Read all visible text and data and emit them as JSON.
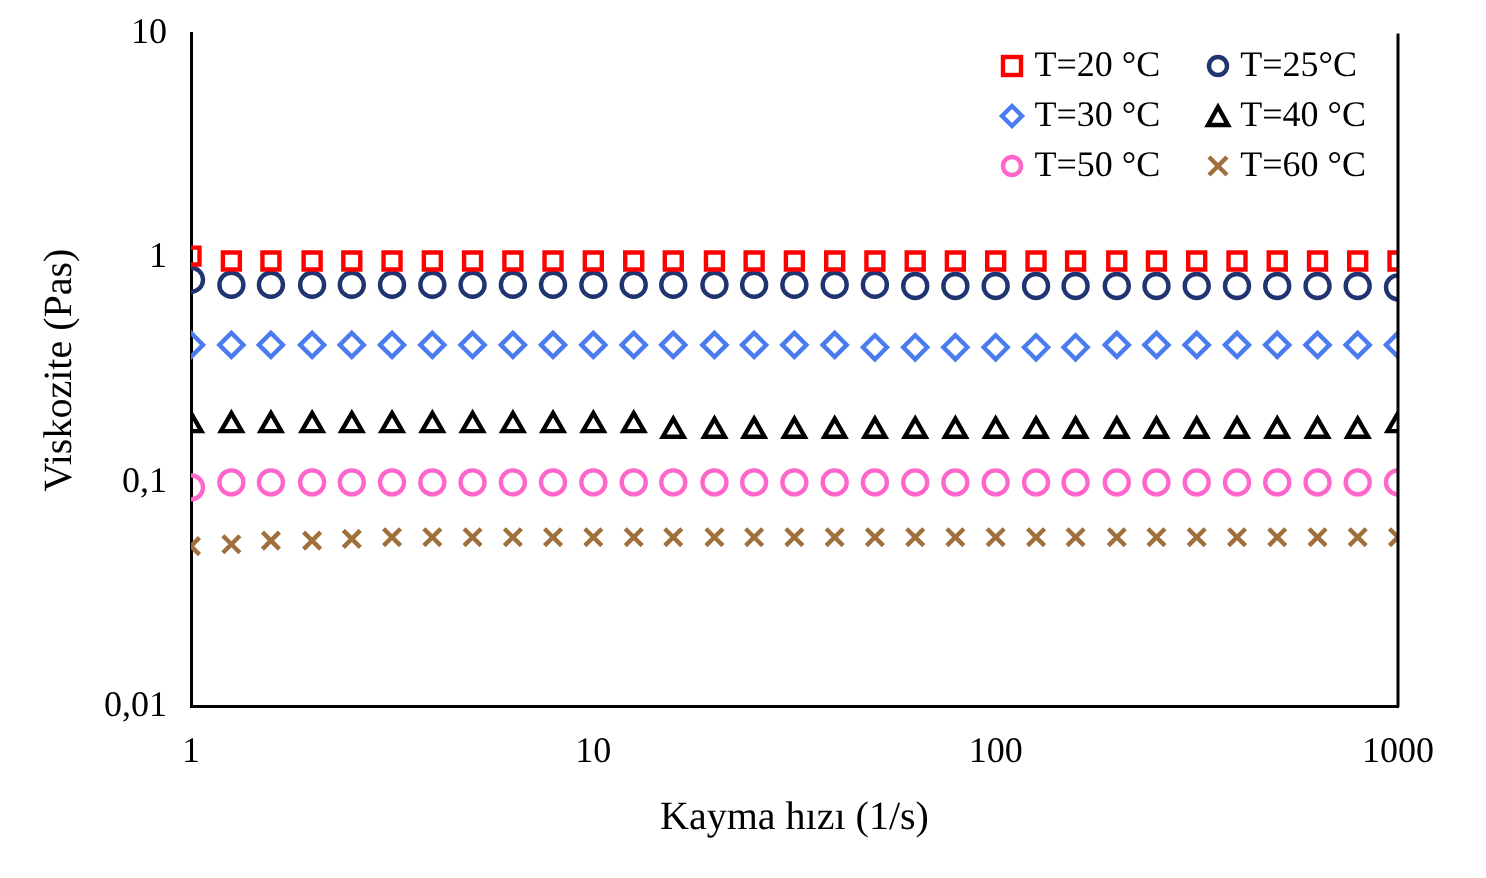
{
  "chart_data": {
    "type": "scatter",
    "xlabel": "Kayma hızı (1/s)",
    "ylabel": "Viskozite (Pas)",
    "log": "xy",
    "x": [
      1,
      1.26,
      1.58,
      2,
      2.51,
      3.16,
      3.98,
      5.01,
      6.31,
      7.94,
      10,
      12.6,
      15.8,
      20,
      25.1,
      31.6,
      39.8,
      50.1,
      63.1,
      79.4,
      100,
      126,
      158,
      200,
      251,
      316,
      398,
      501,
      631,
      794,
      1000
    ],
    "xlim": [
      1,
      1000
    ],
    "xticks": [
      1,
      10,
      100,
      1000
    ],
    "ylim": [
      0.01,
      10
    ],
    "yticks": [
      {
        "value": 0.01,
        "label": "0,01"
      },
      {
        "value": 0.1,
        "label": "0,1"
      },
      {
        "value": 1,
        "label": "1"
      },
      {
        "value": 10,
        "label": "10"
      }
    ],
    "grid": false,
    "legend": "top right",
    "series": [
      {
        "name": "T=20 °C",
        "color": "#ff0000",
        "marker": "square",
        "values": [
          1.02,
          0.97,
          0.97,
          0.97,
          0.97,
          0.97,
          0.97,
          0.97,
          0.97,
          0.97,
          0.97,
          0.97,
          0.97,
          0.97,
          0.97,
          0.97,
          0.97,
          0.97,
          0.97,
          0.97,
          0.97,
          0.97,
          0.97,
          0.97,
          0.97,
          0.97,
          0.97,
          0.97,
          0.97,
          0.97,
          0.97
        ]
      },
      {
        "name": "T=25°C",
        "color": "#1f3470",
        "marker": "circle",
        "values": [
          0.8,
          0.76,
          0.76,
          0.76,
          0.76,
          0.76,
          0.76,
          0.76,
          0.76,
          0.76,
          0.76,
          0.76,
          0.76,
          0.76,
          0.76,
          0.76,
          0.76,
          0.76,
          0.75,
          0.75,
          0.75,
          0.75,
          0.75,
          0.75,
          0.75,
          0.75,
          0.75,
          0.75,
          0.75,
          0.75,
          0.74
        ]
      },
      {
        "name": "T=30 °C",
        "color": "#4a7cf0",
        "marker": "diamond",
        "values": [
          0.41,
          0.41,
          0.41,
          0.41,
          0.41,
          0.41,
          0.41,
          0.41,
          0.41,
          0.41,
          0.41,
          0.41,
          0.41,
          0.41,
          0.41,
          0.41,
          0.41,
          0.4,
          0.4,
          0.4,
          0.4,
          0.4,
          0.4,
          0.41,
          0.41,
          0.41,
          0.41,
          0.41,
          0.41,
          0.41,
          0.41
        ]
      },
      {
        "name": "T=40 °C",
        "color": "#000000",
        "marker": "triangle",
        "values": [
          0.18,
          0.18,
          0.18,
          0.18,
          0.18,
          0.18,
          0.18,
          0.18,
          0.18,
          0.18,
          0.18,
          0.18,
          0.17,
          0.17,
          0.17,
          0.17,
          0.17,
          0.17,
          0.17,
          0.17,
          0.17,
          0.17,
          0.17,
          0.17,
          0.17,
          0.17,
          0.17,
          0.17,
          0.17,
          0.17,
          0.18
        ]
      },
      {
        "name": "T=50 °C",
        "color": "#ff66cc",
        "marker": "circle",
        "values": [
          0.095,
          0.1,
          0.1,
          0.1,
          0.1,
          0.1,
          0.1,
          0.1,
          0.1,
          0.1,
          0.1,
          0.1,
          0.1,
          0.1,
          0.1,
          0.1,
          0.1,
          0.1,
          0.1,
          0.1,
          0.1,
          0.1,
          0.1,
          0.1,
          0.1,
          0.1,
          0.1,
          0.1,
          0.1,
          0.1,
          0.1
        ]
      },
      {
        "name": "T=60 °C",
        "color": "#a0703c",
        "marker": "cross",
        "values": [
          0.052,
          0.053,
          0.055,
          0.055,
          0.056,
          0.057,
          0.057,
          0.057,
          0.057,
          0.057,
          0.057,
          0.057,
          0.057,
          0.057,
          0.057,
          0.057,
          0.057,
          0.057,
          0.057,
          0.057,
          0.057,
          0.057,
          0.057,
          0.057,
          0.057,
          0.057,
          0.057,
          0.057,
          0.057,
          0.057,
          0.057
        ]
      }
    ]
  }
}
